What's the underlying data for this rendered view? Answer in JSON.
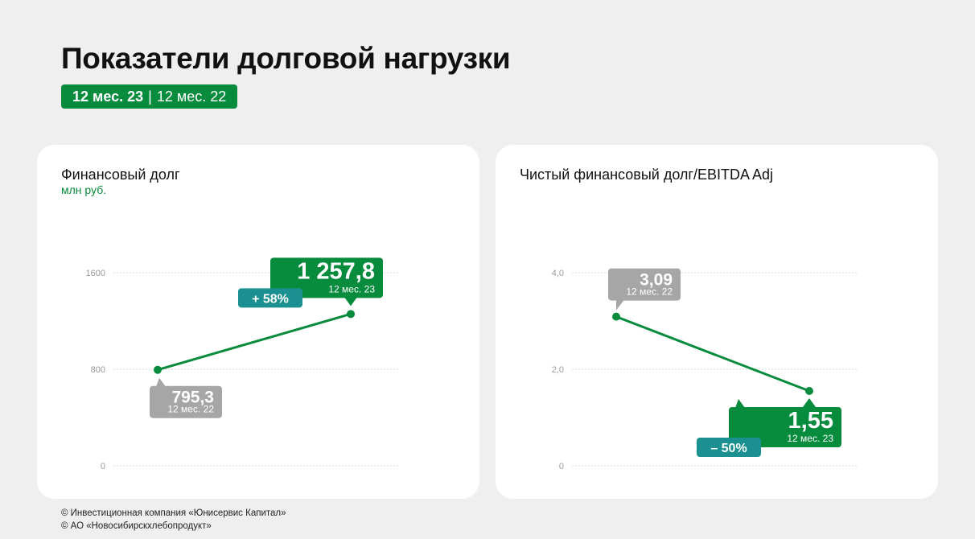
{
  "header": {
    "title": "Показатели долговой нагрузки",
    "period_current": "12 мес. 23",
    "period_separator": "|",
    "period_previous": "12 мес. 22"
  },
  "colors": {
    "accent_green": "#078b3c",
    "teal": "#1a9090",
    "gray_callout": "#a6a6a6",
    "grid": "#d9d9d9",
    "tick": "#9a9a9a"
  },
  "footer": {
    "line1": "© Инвестиционная компания «Юнисервис Капитал»",
    "line2": "© АО «Новосибирскхлебопродукт»"
  },
  "chart_data": [
    {
      "type": "line",
      "title": "Финансовый долг",
      "unit": "млн руб.",
      "ylim": [
        0,
        1600
      ],
      "yticks": [
        "0",
        "800",
        "1600"
      ],
      "ytick_values": [
        0,
        800,
        1600
      ],
      "grid": true,
      "categories": [
        "12 мес. 22",
        "12 мес. 23"
      ],
      "values": [
        795.3,
        1257.8
      ],
      "labels": [
        "795,3",
        "1 257,8"
      ],
      "change": "+ 58%"
    },
    {
      "type": "line",
      "title": "Чистый финансовый долг/EBITDA Adj",
      "unit": "",
      "ylim": [
        0,
        4.0
      ],
      "yticks": [
        "0",
        "2,0",
        "4,0"
      ],
      "ytick_values": [
        0,
        2.0,
        4.0
      ],
      "grid": true,
      "categories": [
        "12 мес. 22",
        "12 мес. 23"
      ],
      "values": [
        3.09,
        1.55
      ],
      "labels": [
        "3,09",
        "1,55"
      ],
      "change": "– 50%"
    }
  ]
}
